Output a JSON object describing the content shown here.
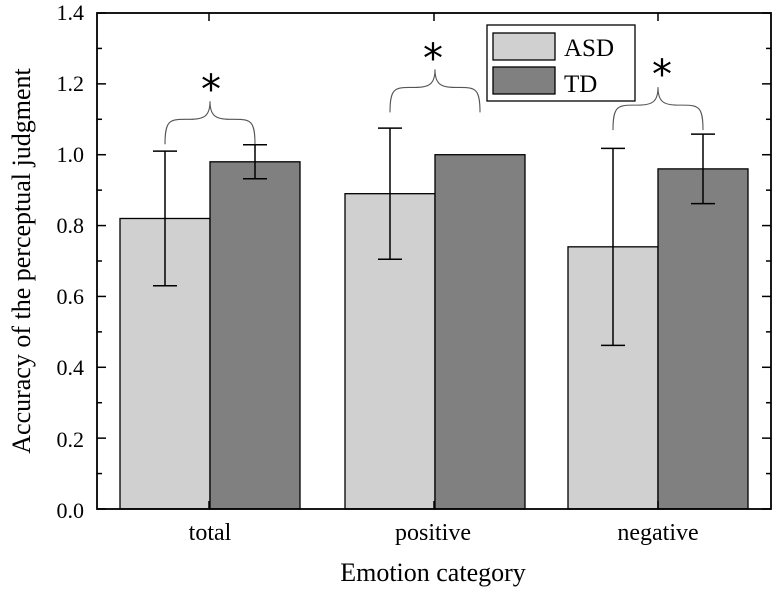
{
  "chart_data": {
    "type": "bar",
    "title": "",
    "xlabel": "Emotion category",
    "ylabel": "Accuracy of the perceptual judgment",
    "ylim": [
      0.0,
      1.4
    ],
    "yticks": [
      "0.0",
      "0.2",
      "0.4",
      "0.6",
      "0.8",
      "1.0",
      "1.2",
      "1.4"
    ],
    "categories": [
      "total",
      "positive",
      "negative"
    ],
    "series": [
      {
        "name": "ASD",
        "color": "#d0d0d0",
        "values": [
          0.82,
          0.89,
          0.74
        ],
        "error": [
          0.19,
          0.185,
          0.278
        ]
      },
      {
        "name": "TD",
        "color": "#808080",
        "values": [
          0.98,
          1.0,
          0.96
        ],
        "error": [
          0.048,
          0.0,
          0.098
        ]
      }
    ],
    "legend_position": "top-right",
    "significance": [
      {
        "category": "total",
        "marker": "*"
      },
      {
        "category": "positive",
        "marker": "*"
      },
      {
        "category": "negative",
        "marker": "*"
      }
    ]
  }
}
